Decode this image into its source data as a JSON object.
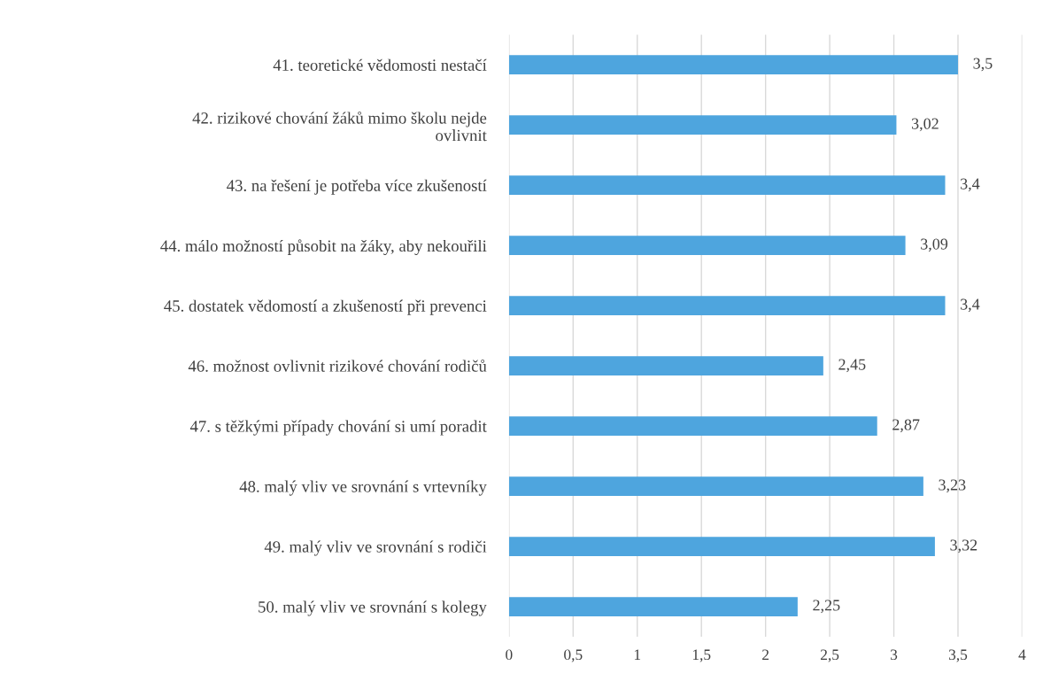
{
  "chart_data": {
    "type": "bar",
    "orientation": "horizontal",
    "categories": [
      "41. teoretické vědomosti nestačí",
      "42. rizikové chování žáků mimo školu nejde\novlivnit",
      "43. na řešení je potřeba více zkušeností",
      "44. málo možností působit na žáky, aby nekouřili",
      "45. dostatek vědomostí a zkušeností při prevenci",
      "46. možnost ovlivnit rizikové chování rodičů",
      "47. s těžkými případy chování si umí poradit",
      "48. malý vliv ve srovnání s vrtevníky",
      "49. malý vliv ve srovnání s rodiči",
      "50. malý vliv ve srovnání s kolegy"
    ],
    "values": [
      3.5,
      3.02,
      3.4,
      3.09,
      3.4,
      2.45,
      2.87,
      3.23,
      3.32,
      2.25
    ],
    "value_labels": [
      "3,5",
      "3,02",
      "3,4",
      "3,09",
      "3,4",
      "2,45",
      "2,87",
      "3,23",
      "3,32",
      "2,25"
    ],
    "color": "#4ea5de",
    "xlim": [
      0,
      4
    ],
    "xticks": [
      0,
      {
        "value": 0.5,
        "label": "0,5"
      },
      1,
      {
        "value": 1.5,
        "label": "1,5"
      },
      2,
      {
        "value": 2.5,
        "label": "2,5"
      },
      3,
      {
        "value": 3.5,
        "label": "3,5"
      },
      4
    ],
    "grid": "x",
    "legend": false
  }
}
